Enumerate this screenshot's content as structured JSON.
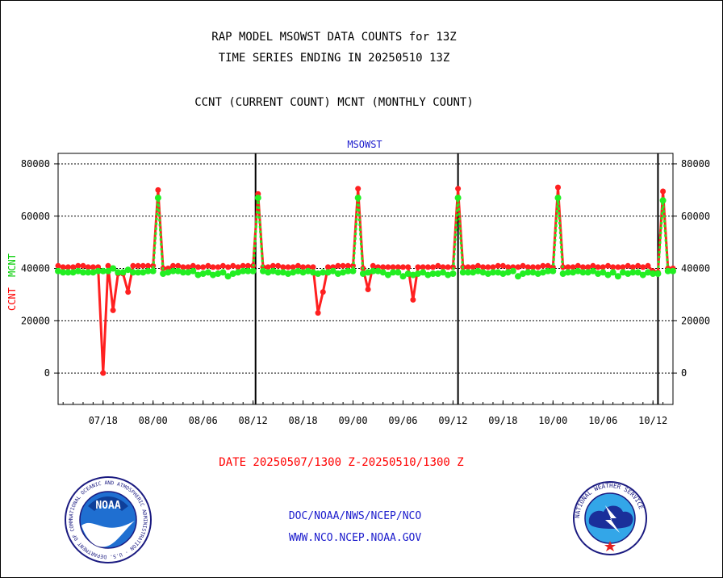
{
  "header": {
    "title_line1": "RAP MODEL MSOWST DATA COUNTS for 13Z",
    "title_line2": "TIME SERIES ENDING IN 20250510 13Z",
    "subtitle": "CCNT (CURRENT COUNT) MCNT (MONTHLY COUNT)"
  },
  "footer": {
    "date_range": "DATE 20250507/1300 Z-20250510/1300 Z",
    "org_path": "DOC/NOAA/NWS/NCEP/NCO",
    "website": "WWW.NCO.NCEP.NOAA.GOV"
  },
  "logos": {
    "left": "noaa-logo",
    "left_text": "NOAA",
    "left_ring_text": "NATIONAL OCEANIC AND ATMOSPHERIC ADMINISTRATION · U.S. DEPARTMENT OF COMMERCE",
    "right": "nws-logo",
    "right_ring_text": "NATIONAL WEATHER SERVICE"
  },
  "colors": {
    "ccnt": "#ff2020",
    "mcnt": "#22ee22",
    "ylabel_ccnt": "#ff0000",
    "ylabel_mcnt": "#00cc00",
    "plot_title": "#1a1acc",
    "date_text": "#ff0000",
    "footer_text": "#1a1acc"
  },
  "chart_data": {
    "type": "line",
    "title": "MSOWST",
    "ylabel_ccnt": "CCNT",
    "ylabel_mcnt": "MCNT",
    "ylim": [
      -12000,
      84000
    ],
    "yticks": [
      0,
      20000,
      40000,
      60000,
      80000
    ],
    "ytick_labels": [
      "0",
      "20000",
      "40000",
      "60000",
      "80000"
    ],
    "grid": "horizontal dotted",
    "x_range": [
      0,
      123
    ],
    "xticks": [
      {
        "x": 9,
        "label": "07/18"
      },
      {
        "x": 19,
        "label": "08/00"
      },
      {
        "x": 29,
        "label": "08/06"
      },
      {
        "x": 39,
        "label": "08/12"
      },
      {
        "x": 49,
        "label": "08/18"
      },
      {
        "x": 59,
        "label": "09/00"
      },
      {
        "x": 69,
        "label": "09/06"
      },
      {
        "x": 79,
        "label": "09/12"
      },
      {
        "x": 89,
        "label": "09/18"
      },
      {
        "x": 99,
        "label": "10/00"
      },
      {
        "x": 109,
        "label": "10/06"
      },
      {
        "x": 119,
        "label": "10/12"
      }
    ],
    "day_separators": [
      39.5,
      80,
      120
    ],
    "series": [
      {
        "name": "CCNT",
        "values": [
          41000,
          40500,
          40500,
          40500,
          41000,
          41000,
          40500,
          40500,
          40500,
          0,
          41000,
          24000,
          38000,
          38000,
          31000,
          41000,
          41000,
          41000,
          41000,
          41000,
          70000,
          40000,
          40000,
          41000,
          41000,
          40500,
          40500,
          41000,
          40500,
          40500,
          41000,
          40500,
          40500,
          41000,
          40500,
          41000,
          40500,
          41000,
          41000,
          41000,
          68500,
          40500,
          40500,
          41000,
          41000,
          40500,
          40500,
          40500,
          41000,
          40500,
          40500,
          40500,
          23000,
          31000,
          40500,
          40500,
          41000,
          41000,
          41000,
          41000,
          70500,
          40000,
          32000,
          41000,
          40500,
          40500,
          40500,
          40500,
          40500,
          40500,
          40500,
          28000,
          40500,
          40500,
          40500,
          40500,
          41000,
          40500,
          40500,
          40500,
          70500,
          40500,
          40500,
          40500,
          41000,
          40500,
          40500,
          40500,
          41000,
          41000,
          40500,
          40500,
          40500,
          41000,
          40500,
          40500,
          40500,
          41000,
          41000,
          40500,
          71000,
          40500,
          40500,
          40500,
          41000,
          40500,
          40500,
          41000,
          40500,
          40500,
          41000,
          40500,
          40500,
          40500,
          41000,
          40500,
          41000,
          40500,
          41000,
          39000,
          38500,
          69500,
          40000,
          40000
        ]
      },
      {
        "name": "MCNT",
        "values": [
          39000,
          38500,
          38500,
          38500,
          39000,
          38500,
          38500,
          38500,
          39000,
          39000,
          39000,
          40000,
          38500,
          38500,
          39500,
          38500,
          38500,
          38500,
          39000,
          39000,
          67000,
          38000,
          38500,
          39000,
          39000,
          38500,
          38500,
          39000,
          37500,
          38000,
          38500,
          37500,
          38000,
          38500,
          37000,
          38000,
          38500,
          39000,
          39000,
          39000,
          67000,
          39000,
          38500,
          39000,
          38500,
          38500,
          38000,
          38500,
          39000,
          38500,
          39000,
          38500,
          38000,
          38500,
          38500,
          39000,
          38000,
          38500,
          39000,
          39000,
          67000,
          38000,
          38500,
          39000,
          39000,
          38500,
          37500,
          38500,
          38500,
          37000,
          38000,
          37500,
          38000,
          38500,
          37500,
          38000,
          38000,
          38500,
          37500,
          38000,
          67000,
          38500,
          38500,
          38500,
          39000,
          38500,
          38000,
          38500,
          38500,
          38000,
          38500,
          39000,
          37000,
          38000,
          38500,
          38500,
          38000,
          38500,
          39000,
          39000,
          67000,
          38000,
          38500,
          38500,
          39000,
          38500,
          38500,
          39000,
          38000,
          38500,
          37500,
          38500,
          37000,
          38500,
          38000,
          38500,
          38500,
          37500,
          38500,
          38000,
          38000,
          66000,
          39000,
          39000
        ]
      }
    ]
  }
}
